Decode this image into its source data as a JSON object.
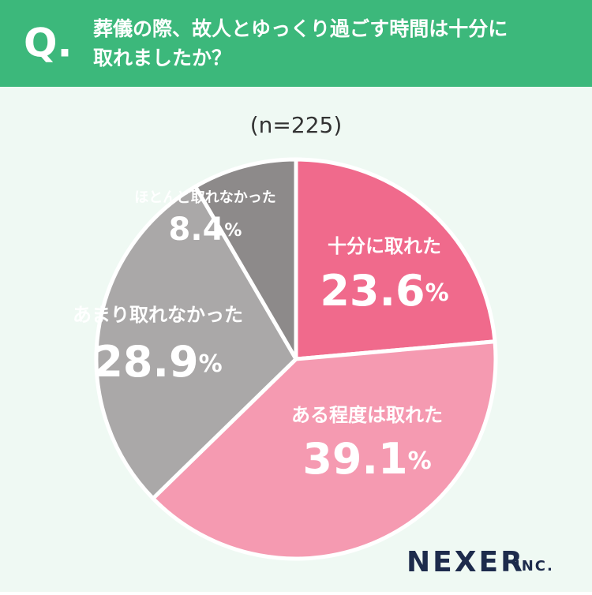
{
  "chart_data": {
    "type": "pie",
    "question_mark": "Q.",
    "title": [
      "葬儀の際、故人とゆっくり過ごす時間は十分に",
      "取れましたか？"
    ],
    "subtitle": "(n=225)",
    "categories": [
      "十分に取れた",
      "ある程度は取れた",
      "あまり取れなかった",
      "ほとんど取れなかった"
    ],
    "values": [
      23.6,
      39.1,
      28.9,
      8.4
    ],
    "value_labels": [
      "23.6%",
      "39.1%",
      "28.9%",
      "8.4%"
    ],
    "colors": [
      "#f06a8c",
      "#f59ab1",
      "#aaa8a8",
      "#8d8a8a"
    ]
  },
  "logo": {
    "name": "NEXER",
    "suffix": "INC."
  }
}
